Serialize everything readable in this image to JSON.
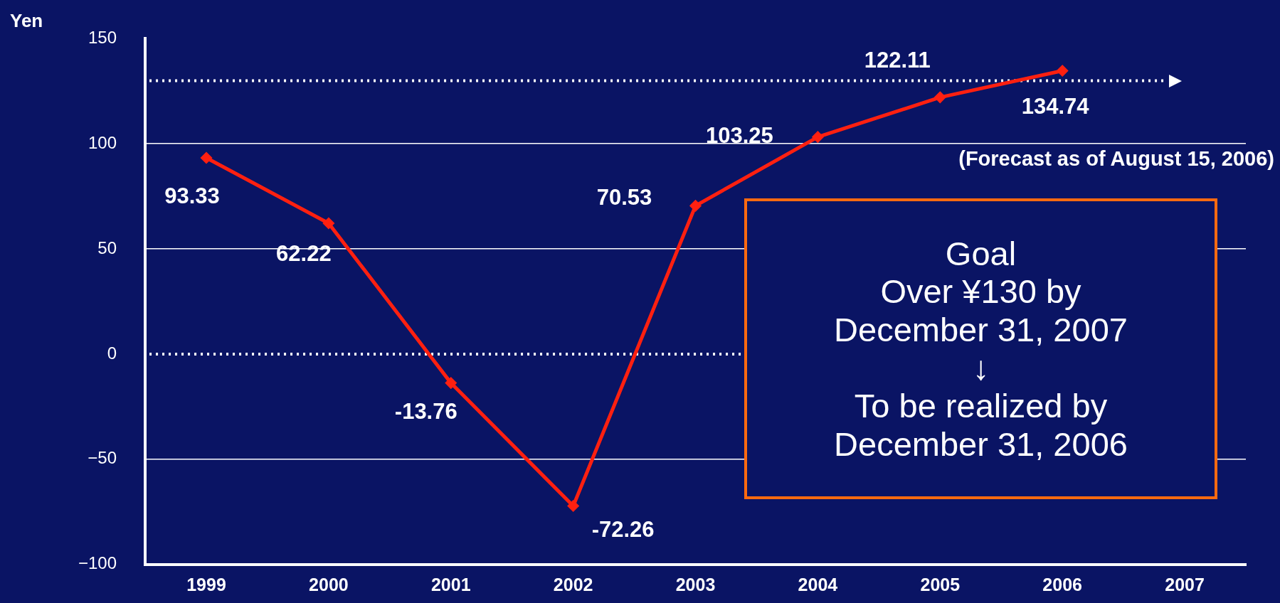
{
  "chart_data": {
    "type": "line",
    "ylabel": "Yen",
    "categories": [
      "1999",
      "2000",
      "2001",
      "2002",
      "2003",
      "2004",
      "2005",
      "2006",
      "2007"
    ],
    "series": [
      {
        "color": "#ff2010",
        "values": [
          93.33,
          62.22,
          -13.76,
          -72.26,
          70.53,
          103.25,
          122.11,
          134.74,
          null
        ],
        "value_labels": [
          "93.33",
          "62.22",
          "-13.76",
          "-72.26",
          "70.53",
          "103.25",
          "122.11",
          "134.74",
          null
        ]
      }
    ],
    "ylim": [
      -100,
      150
    ],
    "yticks": [
      {
        "value": -100,
        "label": "−100"
      },
      {
        "value": -50,
        "label": "−50"
      },
      0,
      50,
      100,
      150
    ],
    "grid": "y",
    "legend": false,
    "marker": "diamond",
    "line_style": "solid",
    "ref_lines": [
      {
        "axis": "y",
        "value": 0,
        "color": "#ffffff",
        "line_style": "dotted"
      },
      {
        "axis": "y",
        "value": 130,
        "color": "#ffffff",
        "line_style": "dotted"
      }
    ],
    "annotations": [
      "(Forecast as of August 15, 2006)",
      "Goal\nOver ¥130 by\nDecember 31, 2007\n↓\nTo be realized by\nDecember 31, 2006"
    ]
  }
}
